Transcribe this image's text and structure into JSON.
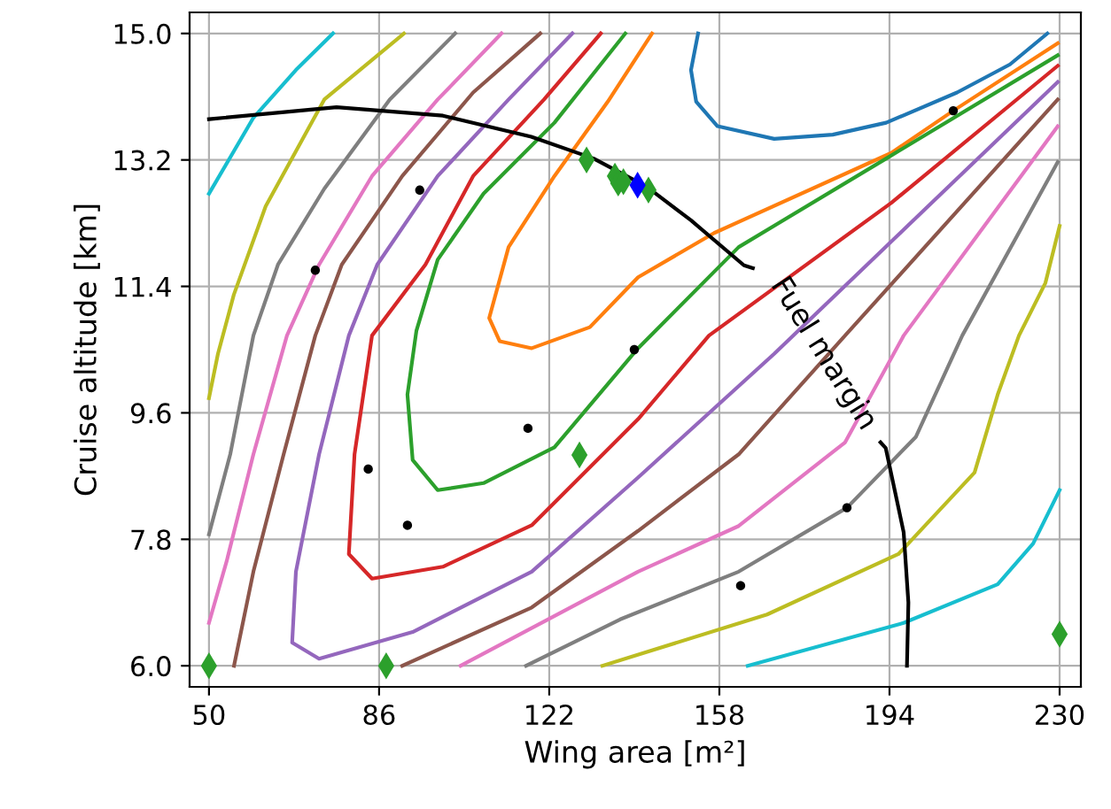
{
  "chart_data": {
    "type": "line",
    "xlabel": "Wing area [m²]",
    "ylabel": "Cruise altitude [km]",
    "xlim": [
      45.9,
      234.5
    ],
    "ylim": [
      5.7,
      15.3
    ],
    "xticks": [
      50,
      86,
      122,
      158,
      194,
      230
    ],
    "yticks": [
      {
        "value": 6,
        "label": "6.0"
      },
      7.8,
      9.6,
      11.4,
      13.2,
      {
        "value": 15,
        "label": "15.0"
      }
    ],
    "grid": true,
    "legend": false,
    "marker": "none",
    "line_style": "solid",
    "annotations": [
      {
        "text": "Fuel margin",
        "x": 180,
        "y": 10.44
      }
    ],
    "series": [
      {
        "color": "#1f77b4",
        "x": [
          153.5,
          152.0,
          153.1,
          157.6,
          169.6,
          182.0,
          193.3,
          208.3,
          219.5,
          227.4
        ],
        "values": [
          15.0,
          14.48,
          14.03,
          13.68,
          13.5,
          13.56,
          13.73,
          14.16,
          14.56,
          15.0
        ]
      },
      {
        "color": "#ff7f0e",
        "x": [
          143.75,
          134.4,
          123.1,
          113.4,
          109.3,
          111.5,
          118.3,
          130.6,
          140.8,
          156.9,
          194.4,
          207.5,
          229.6
        ],
        "values": [
          15.0,
          14.03,
          12.97,
          11.96,
          10.95,
          10.62,
          10.52,
          10.82,
          11.53,
          12.16,
          13.3,
          13.9,
          14.86
        ]
      },
      {
        "color": "#2ca02c",
        "x": [
          138.1,
          123.1,
          108.1,
          98.4,
          93.9,
          92.0,
          93.1,
          98.4,
          108.1,
          123.1,
          140.8,
          162.1,
          193.3,
          229.6
        ],
        "values": [
          15.0,
          13.73,
          12.72,
          11.78,
          10.77,
          9.86,
          8.93,
          8.5,
          8.6,
          9.11,
          10.52,
          11.96,
          13.22,
          14.69
        ]
      },
      {
        "color": "#d62728",
        "x": [
          132.9,
          120.9,
          105.9,
          95.8,
          84.5,
          80.8,
          79.6,
          84.5,
          99.5,
          118.3,
          140.8,
          155.8,
          194.4,
          229.6
        ],
        "values": [
          15.0,
          14.06,
          12.97,
          11.71,
          10.7,
          9.01,
          7.59,
          7.24,
          7.41,
          8.0,
          9.51,
          10.7,
          12.59,
          14.54
        ]
      },
      {
        "color": "#9467bd",
        "x": [
          126.9,
          113.4,
          98.4,
          85.6,
          79.6,
          73.3,
          68.4,
          67.6,
          73.3,
          93.1,
          118.3,
          140.8,
          169.6,
          229.6
        ],
        "values": [
          15.0,
          14.06,
          12.97,
          11.71,
          10.7,
          9.01,
          7.34,
          6.33,
          6.1,
          6.48,
          7.34,
          8.68,
          10.44,
          14.31
        ]
      },
      {
        "color": "#8c564b",
        "x": [
          120.1,
          105.9,
          90.9,
          78.1,
          72.5,
          65.8,
          59.4,
          55.3
        ],
        "values": [
          15.0,
          14.16,
          12.97,
          11.71,
          10.7,
          9.01,
          7.34,
          6.0
        ]
      },
      {
        "color": "#8c564b",
        "x": [
          90.9,
          118.3,
          140.8,
          162.1,
          184.6,
          229.6
        ],
        "values": [
          6.0,
          6.83,
          7.92,
          9.01,
          10.7,
          14.06
        ]
      },
      {
        "color": "#e377c2",
        "x": [
          111.9,
          98.4,
          84.5,
          73.3,
          66.5,
          59.4,
          53.75,
          50.0
        ],
        "values": [
          15.0,
          14.06,
          12.97,
          11.71,
          10.7,
          9.01,
          7.49,
          6.61
        ]
      },
      {
        "color": "#e377c2",
        "x": [
          103.25,
          140.8,
          162.1,
          184.6,
          197.0,
          229.6
        ],
        "values": [
          6.0,
          7.34,
          7.99,
          9.18,
          10.7,
          13.68
        ]
      },
      {
        "color": "#7f7f7f",
        "x": [
          102.1,
          88.25,
          74.4,
          64.6,
          59.4,
          54.5,
          50.0
        ],
        "values": [
          15.0,
          14.06,
          12.79,
          11.71,
          10.7,
          9.01,
          7.87
        ]
      },
      {
        "color": "#7f7f7f",
        "x": [
          117.1,
          137.0,
          162.1,
          185.0,
          199.6,
          209.4,
          229.6
        ],
        "values": [
          6.0,
          6.66,
          7.34,
          8.25,
          9.26,
          10.7,
          13.17
        ]
      },
      {
        "color": "#bcbd22",
        "x": [
          91.25,
          74.4,
          62.0,
          55.25,
          51.9,
          50.0
        ],
        "values": [
          15.0,
          14.06,
          12.54,
          11.28,
          10.44,
          9.81
        ]
      },
      {
        "color": "#bcbd22",
        "x": [
          133.25,
          168.1,
          195.9,
          212.0,
          216.9,
          221.4,
          227.0,
          230.0
        ],
        "values": [
          6.0,
          6.73,
          7.59,
          8.75,
          9.86,
          10.7,
          11.45,
          12.26
        ]
      },
      {
        "color": "#17becf",
        "x": [
          76.25,
          68.4,
          59.4,
          50.0
        ],
        "values": [
          15.0,
          14.48,
          13.8,
          12.72
        ]
      },
      {
        "color": "#17becf",
        "x": [
          164.0,
          197.0,
          216.9,
          224.4,
          230.0
        ],
        "values": [
          6.0,
          6.61,
          7.16,
          7.74,
          8.5
        ]
      },
      {
        "color": "#000000",
        "x": [
          50.0,
          77.0,
          99.5,
          118.2,
          131.4,
          142.6,
          152.0,
          163.2,
          165.1,
          180.0,
          192.1,
          193.2,
          197.0,
          198.0,
          197.7
        ],
        "values": [
          13.78,
          13.95,
          13.83,
          13.53,
          13.22,
          12.82,
          12.34,
          11.7,
          11.66,
          null,
          9.18,
          9.1,
          7.9,
          6.9,
          6.0
        ]
      },
      {
        "type": "scatter",
        "marker": "circle",
        "color": "#000000",
        "x": [
          94.6,
          72.5,
          140.0,
          117.5,
          83.7,
          92.0,
          162.5,
          185.0,
          207.5
        ],
        "values": [
          12.77,
          11.63,
          10.5,
          9.38,
          8.8,
          8.0,
          7.14,
          8.25,
          13.9
        ]
      },
      {
        "type": "scatter",
        "marker": "diamond",
        "color": "#2ca02c",
        "x": [
          50.0,
          87.5,
          128.4,
          230.0,
          129.9,
          135.9,
          136.6,
          137.7,
          143.0
        ],
        "values": [
          6.0,
          6.0,
          9.0,
          6.45,
          13.2,
          12.97,
          12.87,
          12.89,
          12.77
        ]
      },
      {
        "type": "scatter",
        "marker": "diamond",
        "color": "#0000ff",
        "x": [
          140.7
        ],
        "values": [
          12.84
        ]
      }
    ]
  }
}
